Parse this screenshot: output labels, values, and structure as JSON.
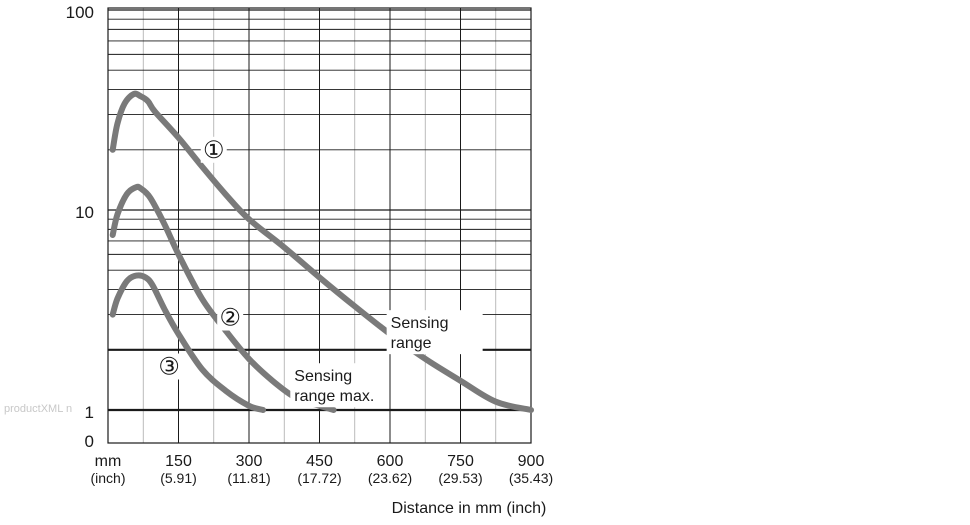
{
  "chart_data": {
    "type": "line",
    "title": "",
    "xlabel": "Distance in mm (inch)",
    "ylabel": "",
    "y_scale": "log",
    "ylim": [
      1,
      100
    ],
    "xlim": [
      0,
      900
    ],
    "grid": true,
    "legend": "none",
    "x_ticks": [
      {
        "value": 0,
        "mm": "mm",
        "inch": "(inch)"
      },
      {
        "value": 150,
        "mm": "150",
        "inch": "(5.91)"
      },
      {
        "value": 300,
        "mm": "300",
        "inch": "(11.81)"
      },
      {
        "value": 450,
        "mm": "450",
        "inch": "(17.72)"
      },
      {
        "value": 600,
        "mm": "600",
        "inch": "(23.62)"
      },
      {
        "value": 750,
        "mm": "750",
        "inch": "(29.53)"
      },
      {
        "value": 900,
        "mm": "900",
        "inch": "(35.43)"
      }
    ],
    "y_ticks": [
      {
        "value": 1,
        "label": "1"
      },
      {
        "value": 10,
        "label": "10"
      },
      {
        "value": 100,
        "label": "100"
      }
    ],
    "y_zero_label": "0",
    "reference_lines": [
      {
        "y": 1
      },
      {
        "y": 2
      }
    ],
    "series": [
      {
        "id": "curve-1",
        "marker": "①",
        "x": [
          10,
          20,
          35,
          55,
          70,
          85,
          100,
          150,
          200,
          250,
          300,
          375,
          450,
          525,
          600,
          675,
          750,
          825,
          900
        ],
        "y": [
          20,
          27,
          34,
          38,
          37,
          35,
          31,
          23,
          16.5,
          12,
          9,
          6.5,
          4.6,
          3.3,
          2.4,
          1.8,
          1.4,
          1.1,
          1.0
        ]
      },
      {
        "id": "curve-2",
        "marker": "②",
        "x": [
          10,
          20,
          40,
          60,
          70,
          90,
          120,
          150,
          200,
          250,
          300,
          350,
          400,
          450,
          480
        ],
        "y": [
          7.5,
          9.5,
          12,
          13,
          12.8,
          11.5,
          8.5,
          6,
          3.6,
          2.5,
          1.8,
          1.4,
          1.15,
          1.05,
          1.0
        ]
      },
      {
        "id": "curve-3",
        "marker": "③",
        "x": [
          10,
          20,
          40,
          60,
          80,
          95,
          120,
          150,
          200,
          250,
          300,
          330
        ],
        "y": [
          3.0,
          3.6,
          4.4,
          4.7,
          4.6,
          4.2,
          3.2,
          2.4,
          1.6,
          1.25,
          1.05,
          1.0
        ]
      }
    ],
    "marker_positions": [
      {
        "label": "①",
        "x": 225,
        "y": 20
      },
      {
        "label": "②",
        "x": 260,
        "y": 2.9
      },
      {
        "label": "③",
        "x": 130,
        "y": 1.65
      }
    ],
    "annotations": [
      {
        "text": [
          "Sensing",
          "range"
        ],
        "x": 695,
        "y": 2.45
      },
      {
        "text": [
          "Sensing",
          "range max."
        ],
        "x": 490,
        "y": 1.33
      }
    ]
  },
  "watermark": "productXML n"
}
